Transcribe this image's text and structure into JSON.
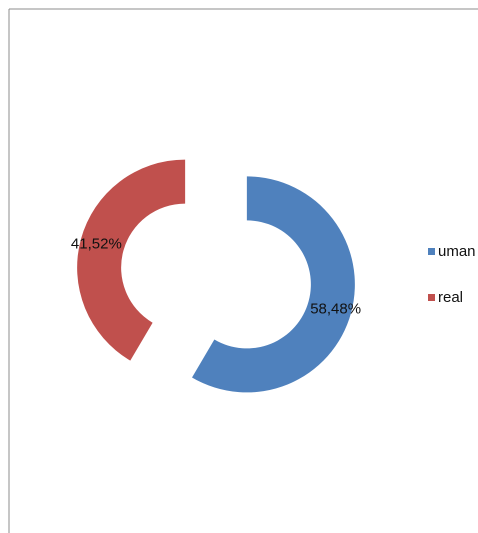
{
  "chart_data": {
    "type": "pie",
    "variant": "exploded doughnut",
    "categories": [
      "uman",
      "real"
    ],
    "values": [
      58.48,
      41.52
    ],
    "data_labels": [
      "58,48%",
      "41,52%"
    ],
    "colors": [
      "#4f81bd",
      "#c0504d"
    ],
    "legend_position": "right",
    "grid": false
  }
}
